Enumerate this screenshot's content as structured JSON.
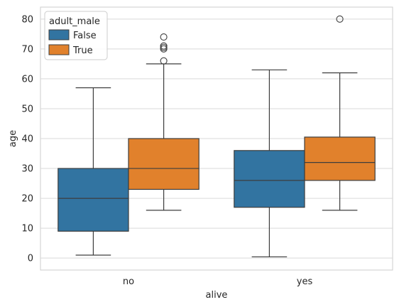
{
  "chart_data": {
    "type": "box",
    "xlabel": "alive",
    "ylabel": "age",
    "categories": [
      "no",
      "yes"
    ],
    "ylim": [
      -4,
      84
    ],
    "yticks": [
      0,
      10,
      20,
      30,
      40,
      50,
      60,
      70,
      80
    ],
    "grid": true,
    "legend": {
      "title": "adult_male",
      "position": "top-left",
      "entries": [
        "False",
        "True"
      ]
    },
    "series": [
      {
        "name": "False",
        "color": "#3274a1",
        "boxes": [
          {
            "category": "no",
            "whisker_low": 1,
            "q1": 9,
            "median": 20,
            "q3": 30,
            "whisker_high": 57,
            "outliers": []
          },
          {
            "category": "yes",
            "whisker_low": 0.42,
            "q1": 17,
            "median": 26,
            "q3": 36,
            "whisker_high": 63,
            "outliers": []
          }
        ]
      },
      {
        "name": "True",
        "color": "#e1812c",
        "boxes": [
          {
            "category": "no",
            "whisker_low": 16,
            "q1": 23,
            "median": 30,
            "q3": 40,
            "whisker_high": 65,
            "outliers": [
              66,
              70,
              70.5,
              71,
              74
            ]
          },
          {
            "category": "yes",
            "whisker_low": 16,
            "q1": 26,
            "median": 32,
            "q3": 40.5,
            "whisker_high": 62,
            "outliers": [
              80
            ]
          }
        ]
      }
    ]
  }
}
